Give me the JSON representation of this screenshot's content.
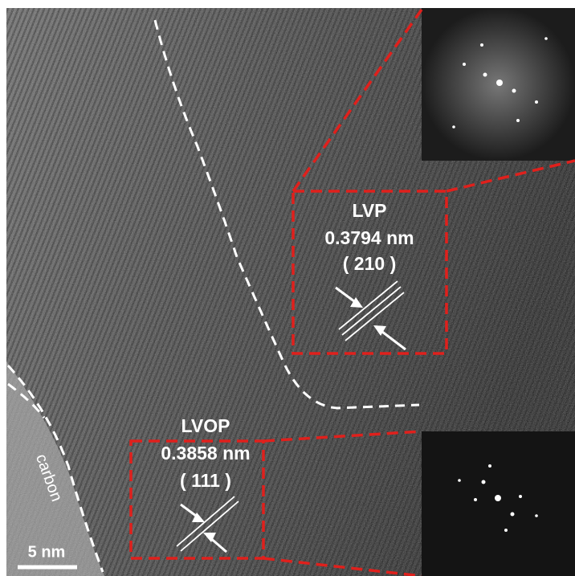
{
  "image": {
    "regions": [
      {
        "phase": "LVP",
        "d_spacing": "0.3794 nm",
        "plane": "( 210 )"
      },
      {
        "phase": "LVOP",
        "d_spacing": "0.3858 nm",
        "plane": "( 111 )"
      }
    ],
    "carbon_label": "carbon",
    "scale_bar": "5 nm"
  }
}
